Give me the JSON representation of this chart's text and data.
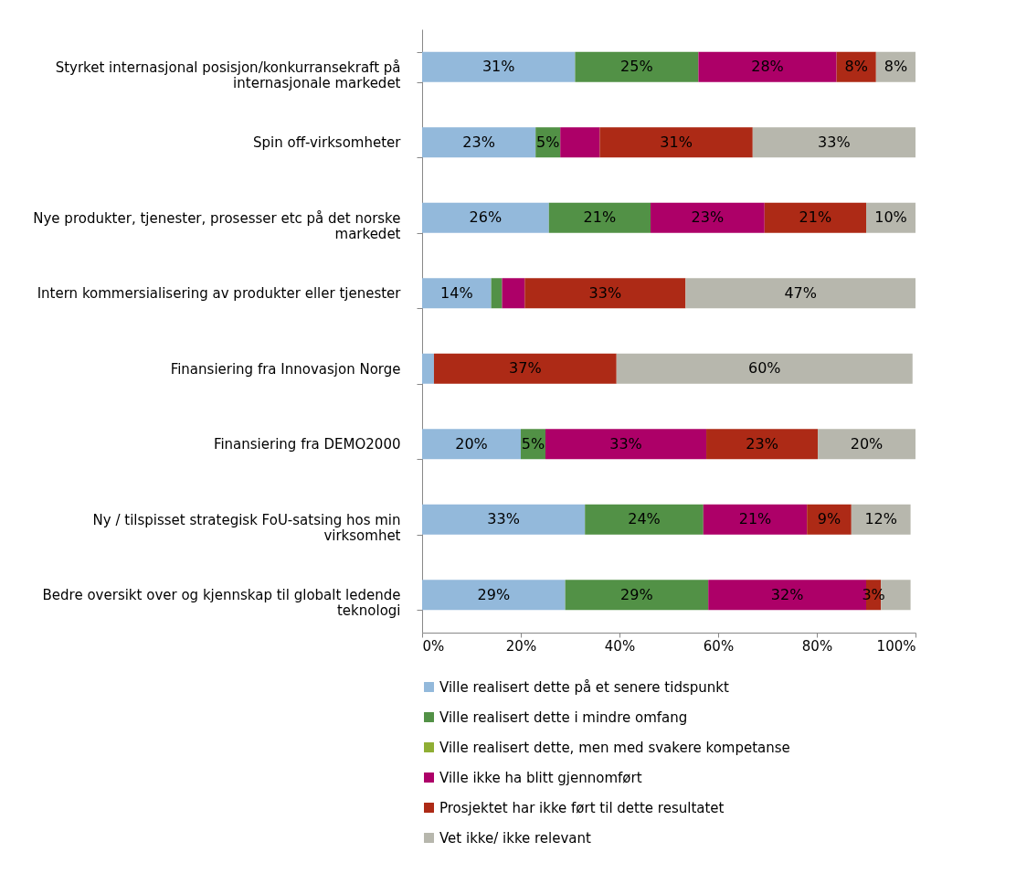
{
  "chart_data": {
    "type": "bar",
    "orientation": "horizontal",
    "stacked": true,
    "legend": "bottom",
    "grid": false,
    "categories": [
      "Styrket internasjonal posisjon/konkurransekraft på internasjonale markedet",
      "Spin off-virksomheter",
      "Nye produkter, tjenester, prosesser etc på det norske markedet",
      "Intern kommersialisering av produkter eller tjenester",
      "Finansiering fra Innovasjon Norge",
      "Finansiering fra DEMO2000",
      "Ny / tilspisset strategisk FoU-satsing hos min virksomhet",
      "Bedre oversikt over og kjennskap til globalt ledende teknologi"
    ],
    "xlim": [
      0,
      100
    ],
    "xticks": [
      {
        "value": 0,
        "label": "0%"
      },
      {
        "value": 20,
        "label": "20%"
      },
      {
        "value": 40,
        "label": "40%"
      },
      {
        "value": 60,
        "label": "60%"
      },
      {
        "value": 80,
        "label": "80%"
      },
      {
        "value": 100,
        "label": "100%"
      }
    ],
    "series": [
      {
        "name": "Ville realisert dette på et senere tidspunkt",
        "color": "#93b9db",
        "values": [
          31,
          23,
          25.7,
          14,
          2.4,
          20,
          33,
          29
        ],
        "value_labels": [
          "31%",
          "23%",
          "26%",
          "14%",
          null,
          "20%",
          "33%",
          "29%"
        ]
      },
      {
        "name": "Ville realisert dette i mindre omfang",
        "color": "#529146",
        "values": [
          25,
          5,
          20.6,
          2.2,
          null,
          5,
          24,
          29
        ],
        "value_labels": [
          "25%",
          "5%",
          "21%",
          null,
          null,
          "5%",
          "24%",
          "29%"
        ]
      },
      {
        "name": "Ville realisert dette, men med svakere kompetanse",
        "color": "#8fae34",
        "values": [
          null,
          null,
          null,
          null,
          null,
          null,
          null,
          null
        ],
        "value_labels": [
          null,
          null,
          null,
          null,
          null,
          null,
          null,
          null
        ]
      },
      {
        "name": "Ville ikke ha blitt gjennomført",
        "color": "#ad0068",
        "values": [
          28,
          8,
          23.1,
          4.6,
          null,
          32.6,
          21,
          32
        ],
        "value_labels": [
          "28%",
          null,
          "23%",
          null,
          null,
          "33%",
          "21%",
          "32%"
        ]
      },
      {
        "name": "Prosjektet har ikke ført til dette resultatet",
        "color": "#ad2a16",
        "values": [
          8,
          31,
          20.6,
          32.6,
          37,
          22.6,
          9,
          3
        ],
        "value_labels": [
          "8%",
          "31%",
          "21%",
          "33%",
          "37%",
          "23%",
          "9%",
          "3%"
        ]
      },
      {
        "name": "Vet ikke/ ikke relevant",
        "color": "#b7b7ad",
        "values": [
          8,
          33,
          10,
          46.6,
          60,
          19.8,
          12,
          6
        ],
        "value_labels": [
          "8%",
          "33%",
          "10%",
          "47%",
          "60%",
          "20%",
          "12%",
          null
        ]
      }
    ]
  }
}
